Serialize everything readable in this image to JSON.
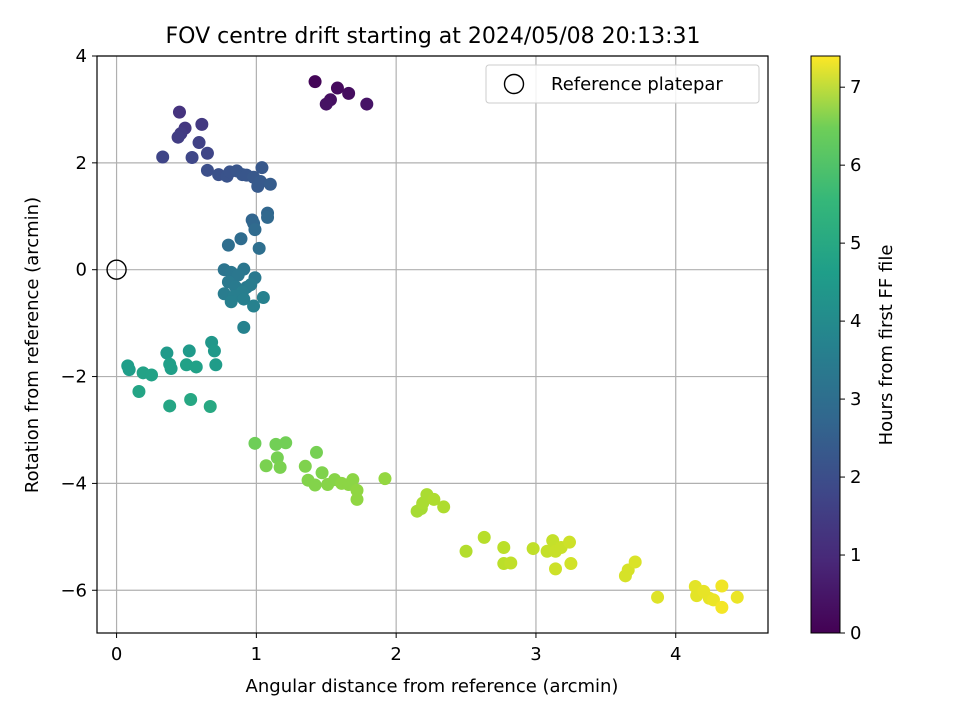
{
  "chart_data": {
    "type": "scatter",
    "title": "FOV centre drift starting at 2024/05/08 20:13:31",
    "xlabel": "Angular distance from reference (arcmin)",
    "ylabel": "Rotation from reference (arcmin)",
    "xlim": [
      -0.14,
      4.66
    ],
    "ylim": [
      -6.8,
      4.0
    ],
    "xticks": [
      0,
      1,
      2,
      3,
      4
    ],
    "yticks": [
      4,
      2,
      0,
      -2,
      -4,
      -6
    ],
    "grid": true,
    "legend": {
      "position": "top-right",
      "entries": [
        "Reference platepar"
      ]
    },
    "reference": {
      "x": 0,
      "y": 0,
      "label": "Reference platepar"
    },
    "colorbar": {
      "label": "Hours from first FF file",
      "min": 0,
      "max": 7.4,
      "ticks": [
        0,
        1,
        2,
        3,
        4,
        5,
        6,
        7
      ],
      "colormap": "viridis"
    },
    "points": [
      {
        "x": 1.42,
        "y": 3.52,
        "h": 0.1
      },
      {
        "x": 1.58,
        "y": 3.4,
        "h": 0.2
      },
      {
        "x": 1.66,
        "y": 3.3,
        "h": 0.25
      },
      {
        "x": 1.53,
        "y": 3.18,
        "h": 0.3
      },
      {
        "x": 1.5,
        "y": 3.1,
        "h": 0.35
      },
      {
        "x": 1.79,
        "y": 3.1,
        "h": 0.4
      },
      {
        "x": 0.45,
        "y": 2.95,
        "h": 1.1
      },
      {
        "x": 0.49,
        "y": 2.65,
        "h": 1.2
      },
      {
        "x": 0.61,
        "y": 2.72,
        "h": 1.25
      },
      {
        "x": 0.46,
        "y": 2.55,
        "h": 1.3
      },
      {
        "x": 0.44,
        "y": 2.48,
        "h": 1.35
      },
      {
        "x": 0.59,
        "y": 2.38,
        "h": 1.45
      },
      {
        "x": 0.65,
        "y": 2.18,
        "h": 1.55
      },
      {
        "x": 0.33,
        "y": 2.11,
        "h": 1.55
      },
      {
        "x": 0.54,
        "y": 2.1,
        "h": 1.6
      },
      {
        "x": 0.65,
        "y": 1.86,
        "h": 1.8
      },
      {
        "x": 0.73,
        "y": 1.78,
        "h": 1.85
      },
      {
        "x": 0.79,
        "y": 1.75,
        "h": 1.9
      },
      {
        "x": 0.81,
        "y": 1.83,
        "h": 1.9
      },
      {
        "x": 0.86,
        "y": 1.85,
        "h": 1.95
      },
      {
        "x": 0.9,
        "y": 1.78,
        "h": 2.0
      },
      {
        "x": 0.93,
        "y": 1.77,
        "h": 2.0
      },
      {
        "x": 0.98,
        "y": 1.73,
        "h": 2.05
      },
      {
        "x": 1.04,
        "y": 1.91,
        "h": 2.05
      },
      {
        "x": 1.01,
        "y": 1.56,
        "h": 2.1
      },
      {
        "x": 1.03,
        "y": 1.65,
        "h": 2.1
      },
      {
        "x": 1.1,
        "y": 1.6,
        "h": 2.15
      },
      {
        "x": 0.97,
        "y": 0.93,
        "h": 2.4
      },
      {
        "x": 0.98,
        "y": 0.87,
        "h": 2.45
      },
      {
        "x": 1.08,
        "y": 1.06,
        "h": 2.45
      },
      {
        "x": 1.08,
        "y": 0.98,
        "h": 2.5
      },
      {
        "x": 0.99,
        "y": 0.75,
        "h": 2.55
      },
      {
        "x": 0.89,
        "y": 0.58,
        "h": 2.6
      },
      {
        "x": 0.8,
        "y": 0.46,
        "h": 2.65
      },
      {
        "x": 1.02,
        "y": 0.4,
        "h": 2.7
      },
      {
        "x": 0.77,
        "y": 0.0,
        "h": 2.85
      },
      {
        "x": 0.82,
        "y": -0.05,
        "h": 2.9
      },
      {
        "x": 0.91,
        "y": 0.01,
        "h": 2.9
      },
      {
        "x": 0.87,
        "y": -0.1,
        "h": 2.95
      },
      {
        "x": 0.99,
        "y": -0.15,
        "h": 3.0
      },
      {
        "x": 0.8,
        "y": -0.23,
        "h": 3.0
      },
      {
        "x": 0.85,
        "y": -0.32,
        "h": 3.05
      },
      {
        "x": 0.93,
        "y": -0.33,
        "h": 3.05
      },
      {
        "x": 0.96,
        "y": -0.28,
        "h": 3.1
      },
      {
        "x": 0.77,
        "y": -0.45,
        "h": 3.1
      },
      {
        "x": 0.84,
        "y": -0.5,
        "h": 3.15
      },
      {
        "x": 0.9,
        "y": -0.42,
        "h": 3.15
      },
      {
        "x": 0.82,
        "y": -0.6,
        "h": 3.2
      },
      {
        "x": 0.91,
        "y": -0.55,
        "h": 3.2
      },
      {
        "x": 1.05,
        "y": -0.52,
        "h": 3.25
      },
      {
        "x": 0.98,
        "y": -0.68,
        "h": 3.25
      },
      {
        "x": 0.91,
        "y": -1.08,
        "h": 3.3
      },
      {
        "x": 0.68,
        "y": -1.36,
        "h": 3.9
      },
      {
        "x": 0.7,
        "y": -1.52,
        "h": 3.95
      },
      {
        "x": 0.36,
        "y": -1.56,
        "h": 4.0
      },
      {
        "x": 0.52,
        "y": -1.52,
        "h": 4.0
      },
      {
        "x": 0.71,
        "y": -1.78,
        "h": 4.05
      },
      {
        "x": 0.08,
        "y": -1.8,
        "h": 4.1
      },
      {
        "x": 0.09,
        "y": -1.87,
        "h": 4.1
      },
      {
        "x": 0.38,
        "y": -1.77,
        "h": 4.15
      },
      {
        "x": 0.39,
        "y": -1.85,
        "h": 4.15
      },
      {
        "x": 0.5,
        "y": -1.78,
        "h": 4.2
      },
      {
        "x": 0.57,
        "y": -1.82,
        "h": 4.2
      },
      {
        "x": 0.19,
        "y": -1.93,
        "h": 4.25
      },
      {
        "x": 0.25,
        "y": -1.97,
        "h": 4.25
      },
      {
        "x": 0.16,
        "y": -2.28,
        "h": 4.3
      },
      {
        "x": 0.38,
        "y": -2.55,
        "h": 4.35
      },
      {
        "x": 0.53,
        "y": -2.43,
        "h": 4.4
      },
      {
        "x": 0.67,
        "y": -2.56,
        "h": 4.45
      },
      {
        "x": 0.99,
        "y": -3.25,
        "h": 5.75
      },
      {
        "x": 1.14,
        "y": -3.27,
        "h": 5.8
      },
      {
        "x": 1.21,
        "y": -3.24,
        "h": 5.8
      },
      {
        "x": 1.15,
        "y": -3.52,
        "h": 5.85
      },
      {
        "x": 1.43,
        "y": -3.42,
        "h": 5.85
      },
      {
        "x": 1.07,
        "y": -3.67,
        "h": 5.9
      },
      {
        "x": 1.17,
        "y": -3.7,
        "h": 5.9
      },
      {
        "x": 1.35,
        "y": -3.68,
        "h": 5.95
      },
      {
        "x": 1.47,
        "y": -3.8,
        "h": 5.95
      },
      {
        "x": 1.37,
        "y": -3.94,
        "h": 6.0
      },
      {
        "x": 1.42,
        "y": -4.03,
        "h": 6.0
      },
      {
        "x": 1.51,
        "y": -4.02,
        "h": 6.05
      },
      {
        "x": 1.56,
        "y": -3.93,
        "h": 6.05
      },
      {
        "x": 1.61,
        "y": -4.0,
        "h": 6.1
      },
      {
        "x": 1.66,
        "y": -4.02,
        "h": 6.1
      },
      {
        "x": 1.69,
        "y": -3.93,
        "h": 6.1
      },
      {
        "x": 1.72,
        "y": -4.13,
        "h": 6.15
      },
      {
        "x": 1.72,
        "y": -4.3,
        "h": 6.15
      },
      {
        "x": 1.92,
        "y": -3.91,
        "h": 6.2
      },
      {
        "x": 2.15,
        "y": -4.52,
        "h": 6.4
      },
      {
        "x": 2.18,
        "y": -4.47,
        "h": 6.4
      },
      {
        "x": 2.19,
        "y": -4.37,
        "h": 6.45
      },
      {
        "x": 2.22,
        "y": -4.21,
        "h": 6.45
      },
      {
        "x": 2.27,
        "y": -4.3,
        "h": 6.5
      },
      {
        "x": 2.34,
        "y": -4.44,
        "h": 6.5
      },
      {
        "x": 2.5,
        "y": -5.27,
        "h": 6.55
      },
      {
        "x": 2.63,
        "y": -5.01,
        "h": 6.6
      },
      {
        "x": 2.77,
        "y": -5.2,
        "h": 6.65
      },
      {
        "x": 2.77,
        "y": -5.5,
        "h": 6.65
      },
      {
        "x": 2.82,
        "y": -5.49,
        "h": 6.7
      },
      {
        "x": 2.98,
        "y": -5.22,
        "h": 6.7
      },
      {
        "x": 3.08,
        "y": -5.27,
        "h": 6.75
      },
      {
        "x": 3.12,
        "y": -5.07,
        "h": 6.75
      },
      {
        "x": 3.14,
        "y": -5.27,
        "h": 6.8
      },
      {
        "x": 3.18,
        "y": -5.2,
        "h": 6.8
      },
      {
        "x": 3.14,
        "y": -5.6,
        "h": 6.85
      },
      {
        "x": 3.24,
        "y": -5.1,
        "h": 6.85
      },
      {
        "x": 3.25,
        "y": -5.5,
        "h": 6.9
      },
      {
        "x": 3.64,
        "y": -5.73,
        "h": 6.95
      },
      {
        "x": 3.66,
        "y": -5.62,
        "h": 6.95
      },
      {
        "x": 3.71,
        "y": -5.47,
        "h": 7.0
      },
      {
        "x": 3.87,
        "y": -6.13,
        "h": 7.05
      },
      {
        "x": 4.14,
        "y": -5.93,
        "h": 7.1
      },
      {
        "x": 4.15,
        "y": -6.1,
        "h": 7.1
      },
      {
        "x": 4.2,
        "y": -6.02,
        "h": 7.15
      },
      {
        "x": 4.24,
        "y": -6.15,
        "h": 7.15
      },
      {
        "x": 4.27,
        "y": -6.18,
        "h": 7.2
      },
      {
        "x": 4.33,
        "y": -5.92,
        "h": 7.25
      },
      {
        "x": 4.33,
        "y": -6.32,
        "h": 7.3
      },
      {
        "x": 4.44,
        "y": -6.13,
        "h": 7.2
      }
    ]
  }
}
